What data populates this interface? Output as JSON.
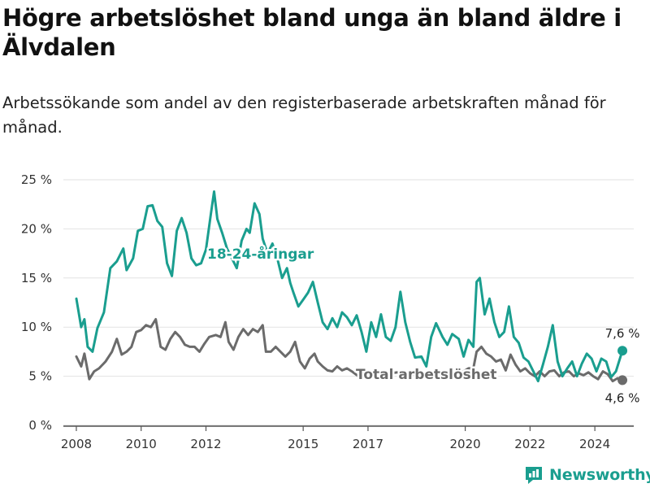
{
  "header": {
    "title": "Högre arbetslöshet bland unga än bland äldre i Älvdalen",
    "subtitle": "Arbetssökande som andel av den registerbaserade arbetskraften månad för månad."
  },
  "brand": {
    "name": "Newsworthy",
    "icon": "newsworthy-logo-icon",
    "color": "#1a9e8f"
  },
  "chart_data": {
    "type": "line",
    "title": "Högre arbetslöshet bland unga än bland äldre i Älvdalen",
    "subtitle": "Arbetssökande som andel av den registerbaserade arbetskraften månad för månad.",
    "xlabel": "",
    "ylabel": "",
    "ylim": [
      0,
      25
    ],
    "xlim": [
      2007.6,
      2025.2
    ],
    "y_ticks": [
      0,
      5,
      10,
      15,
      20,
      25
    ],
    "y_tick_labels": [
      "0 %",
      "5 %",
      "10 %",
      "15 %",
      "20 %",
      "25 %"
    ],
    "x_ticks": [
      2008,
      2010,
      2012,
      2015,
      2017,
      2020,
      2022,
      2024
    ],
    "x_tick_labels": [
      "2008",
      "2010",
      "2012",
      "2015",
      "2017",
      "2020",
      "2022",
      "2024"
    ],
    "grid": "horizontal",
    "legend": "inline labels",
    "series": [
      {
        "name": "18-24-åringar",
        "color": "#1a9e8f",
        "end_label": "7,6 %",
        "points": [
          [
            2008.0,
            12.9
          ],
          [
            2008.15,
            10.0
          ],
          [
            2008.25,
            10.8
          ],
          [
            2008.35,
            8.0
          ],
          [
            2008.5,
            7.5
          ],
          [
            2008.65,
            9.9
          ],
          [
            2008.85,
            11.5
          ],
          [
            2009.05,
            16.0
          ],
          [
            2009.25,
            16.7
          ],
          [
            2009.45,
            18.0
          ],
          [
            2009.55,
            15.8
          ],
          [
            2009.75,
            17.0
          ],
          [
            2009.9,
            19.8
          ],
          [
            2010.05,
            20.0
          ],
          [
            2010.2,
            22.3
          ],
          [
            2010.35,
            22.4
          ],
          [
            2010.5,
            20.8
          ],
          [
            2010.65,
            20.2
          ],
          [
            2010.8,
            16.5
          ],
          [
            2010.95,
            15.2
          ],
          [
            2011.1,
            19.8
          ],
          [
            2011.25,
            21.1
          ],
          [
            2011.4,
            19.6
          ],
          [
            2011.55,
            17.0
          ],
          [
            2011.7,
            16.3
          ],
          [
            2011.85,
            16.5
          ],
          [
            2012.0,
            17.9
          ],
          [
            2012.15,
            21.5
          ],
          [
            2012.25,
            23.8
          ],
          [
            2012.35,
            21.0
          ],
          [
            2012.5,
            19.6
          ],
          [
            2012.65,
            18.0
          ],
          [
            2012.8,
            17.0
          ],
          [
            2012.95,
            16.0
          ],
          [
            2013.1,
            18.8
          ],
          [
            2013.25,
            20.0
          ],
          [
            2013.35,
            19.6
          ],
          [
            2013.5,
            22.6
          ],
          [
            2013.65,
            21.5
          ],
          [
            2013.75,
            19.0
          ],
          [
            2013.9,
            17.5
          ],
          [
            2014.05,
            18.5
          ],
          [
            2014.2,
            17.0
          ],
          [
            2014.35,
            15.0
          ],
          [
            2014.5,
            16.0
          ],
          [
            2014.6,
            14.5
          ],
          [
            2014.7,
            13.5
          ],
          [
            2014.85,
            12.1
          ],
          [
            2015.0,
            12.8
          ],
          [
            2015.15,
            13.5
          ],
          [
            2015.3,
            14.6
          ],
          [
            2015.45,
            12.5
          ],
          [
            2015.6,
            10.5
          ],
          [
            2015.75,
            9.8
          ],
          [
            2015.9,
            10.9
          ],
          [
            2016.05,
            10.0
          ],
          [
            2016.2,
            11.5
          ],
          [
            2016.35,
            11.0
          ],
          [
            2016.5,
            10.2
          ],
          [
            2016.65,
            11.2
          ],
          [
            2016.8,
            9.5
          ],
          [
            2016.95,
            7.5
          ],
          [
            2017.1,
            10.5
          ],
          [
            2017.25,
            9.0
          ],
          [
            2017.4,
            11.3
          ],
          [
            2017.55,
            9.0
          ],
          [
            2017.7,
            8.6
          ],
          [
            2017.85,
            10.0
          ],
          [
            2018.0,
            13.6
          ],
          [
            2018.15,
            10.5
          ],
          [
            2018.3,
            8.5
          ],
          [
            2018.45,
            6.9
          ],
          [
            2018.65,
            7.0
          ],
          [
            2018.8,
            6.0
          ],
          [
            2018.95,
            9.0
          ],
          [
            2019.1,
            10.4
          ],
          [
            2019.3,
            9.0
          ],
          [
            2019.45,
            8.2
          ],
          [
            2019.6,
            9.3
          ],
          [
            2019.8,
            8.8
          ],
          [
            2019.95,
            7.0
          ],
          [
            2020.1,
            8.7
          ],
          [
            2020.25,
            8.0
          ],
          [
            2020.35,
            14.6
          ],
          [
            2020.45,
            15.0
          ],
          [
            2020.6,
            11.3
          ],
          [
            2020.75,
            12.9
          ],
          [
            2020.9,
            10.5
          ],
          [
            2021.05,
            9.0
          ],
          [
            2021.2,
            9.5
          ],
          [
            2021.35,
            12.1
          ],
          [
            2021.5,
            9.0
          ],
          [
            2021.65,
            8.4
          ],
          [
            2021.8,
            6.9
          ],
          [
            2021.95,
            6.5
          ],
          [
            2022.1,
            5.5
          ],
          [
            2022.25,
            4.5
          ],
          [
            2022.4,
            6.2
          ],
          [
            2022.55,
            8.0
          ],
          [
            2022.7,
            10.2
          ],
          [
            2022.85,
            6.5
          ],
          [
            2023.0,
            5.0
          ],
          [
            2023.15,
            5.8
          ],
          [
            2023.3,
            6.5
          ],
          [
            2023.45,
            5.0
          ],
          [
            2023.6,
            6.3
          ],
          [
            2023.75,
            7.3
          ],
          [
            2023.9,
            6.8
          ],
          [
            2024.05,
            5.5
          ],
          [
            2024.2,
            6.8
          ],
          [
            2024.35,
            6.5
          ],
          [
            2024.5,
            4.9
          ],
          [
            2024.65,
            5.5
          ],
          [
            2024.85,
            7.6
          ]
        ]
      },
      {
        "name": "Total arbetslöshet",
        "color": "#6b6b6b",
        "end_label": "4,6 %",
        "points": [
          [
            2008.0,
            7.0
          ],
          [
            2008.15,
            6.0
          ],
          [
            2008.25,
            7.3
          ],
          [
            2008.4,
            4.7
          ],
          [
            2008.55,
            5.5
          ],
          [
            2008.7,
            5.8
          ],
          [
            2008.9,
            6.5
          ],
          [
            2009.1,
            7.5
          ],
          [
            2009.25,
            8.8
          ],
          [
            2009.4,
            7.2
          ],
          [
            2009.55,
            7.5
          ],
          [
            2009.7,
            8.0
          ],
          [
            2009.85,
            9.5
          ],
          [
            2010.0,
            9.7
          ],
          [
            2010.15,
            10.2
          ],
          [
            2010.3,
            10.0
          ],
          [
            2010.45,
            10.8
          ],
          [
            2010.6,
            8.0
          ],
          [
            2010.75,
            7.7
          ],
          [
            2010.9,
            8.8
          ],
          [
            2011.05,
            9.5
          ],
          [
            2011.2,
            9.0
          ],
          [
            2011.35,
            8.2
          ],
          [
            2011.5,
            8.0
          ],
          [
            2011.65,
            8.0
          ],
          [
            2011.8,
            7.5
          ],
          [
            2011.95,
            8.3
          ],
          [
            2012.1,
            9.0
          ],
          [
            2012.3,
            9.2
          ],
          [
            2012.45,
            9.0
          ],
          [
            2012.6,
            10.5
          ],
          [
            2012.7,
            8.5
          ],
          [
            2012.85,
            7.7
          ],
          [
            2013.0,
            9.0
          ],
          [
            2013.15,
            9.8
          ],
          [
            2013.3,
            9.2
          ],
          [
            2013.45,
            9.8
          ],
          [
            2013.6,
            9.5
          ],
          [
            2013.75,
            10.2
          ],
          [
            2013.85,
            7.5
          ],
          [
            2014.0,
            7.5
          ],
          [
            2014.15,
            8.0
          ],
          [
            2014.3,
            7.5
          ],
          [
            2014.45,
            7.0
          ],
          [
            2014.6,
            7.5
          ],
          [
            2014.75,
            8.5
          ],
          [
            2014.9,
            6.5
          ],
          [
            2015.05,
            5.8
          ],
          [
            2015.2,
            6.8
          ],
          [
            2015.35,
            7.3
          ],
          [
            2015.45,
            6.5
          ],
          [
            2015.6,
            6.0
          ],
          [
            2015.75,
            5.6
          ],
          [
            2015.9,
            5.5
          ],
          [
            2016.05,
            6.0
          ],
          [
            2016.2,
            5.6
          ],
          [
            2016.35,
            5.8
          ],
          [
            2016.5,
            5.5
          ],
          [
            2016.7,
            5.0
          ],
          [
            2016.85,
            4.8
          ],
          [
            2017.0,
            5.2
          ],
          [
            2017.15,
            5.0
          ],
          [
            2017.3,
            5.2
          ],
          [
            2017.5,
            5.0
          ],
          [
            2017.7,
            5.3
          ],
          [
            2017.9,
            5.4
          ],
          [
            2018.1,
            5.3
          ],
          [
            2018.3,
            5.1
          ],
          [
            2018.5,
            5.2
          ],
          [
            2018.7,
            5.3
          ],
          [
            2018.9,
            5.2
          ],
          [
            2019.1,
            5.4
          ],
          [
            2019.3,
            5.3
          ],
          [
            2019.5,
            5.4
          ],
          [
            2019.7,
            5.3
          ],
          [
            2019.9,
            5.4
          ],
          [
            2020.1,
            5.8
          ],
          [
            2020.25,
            5.8
          ],
          [
            2020.35,
            7.5
          ],
          [
            2020.5,
            8.0
          ],
          [
            2020.65,
            7.3
          ],
          [
            2020.8,
            7.0
          ],
          [
            2020.95,
            6.5
          ],
          [
            2021.1,
            6.7
          ],
          [
            2021.25,
            5.6
          ],
          [
            2021.4,
            7.2
          ],
          [
            2021.55,
            6.2
          ],
          [
            2021.7,
            5.5
          ],
          [
            2021.85,
            5.8
          ],
          [
            2022.0,
            5.3
          ],
          [
            2022.15,
            5.0
          ],
          [
            2022.3,
            5.5
          ],
          [
            2022.45,
            5.0
          ],
          [
            2022.6,
            5.5
          ],
          [
            2022.75,
            5.6
          ],
          [
            2022.9,
            5.0
          ],
          [
            2023.05,
            5.4
          ],
          [
            2023.2,
            5.5
          ],
          [
            2023.35,
            5.0
          ],
          [
            2023.5,
            5.3
          ],
          [
            2023.65,
            5.1
          ],
          [
            2023.8,
            5.4
          ],
          [
            2023.95,
            5.0
          ],
          [
            2024.1,
            4.7
          ],
          [
            2024.25,
            5.5
          ],
          [
            2024.4,
            5.2
          ],
          [
            2024.55,
            4.5
          ],
          [
            2024.7,
            4.8
          ],
          [
            2024.85,
            4.6
          ]
        ]
      }
    ]
  }
}
